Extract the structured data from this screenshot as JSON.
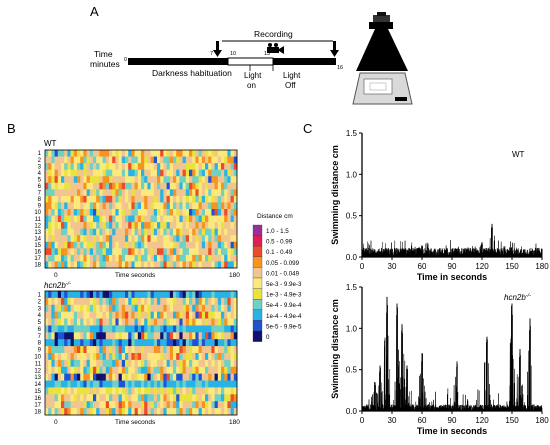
{
  "panels": {
    "a": "A",
    "b": "B",
    "c": "C"
  },
  "timeline": {
    "time_label_line1": "Time",
    "time_label_line2": "minutes",
    "ticks": [
      "0",
      "7",
      "10",
      "13",
      "16"
    ],
    "recording_label": "Recording",
    "darkness_label": "Darkness habituation",
    "light_on_line1": "Light",
    "light_on_line2": "on",
    "light_off_line1": "Light",
    "light_off_line2": "Off"
  },
  "heatmap": {
    "wt_label": "WT",
    "mut_label": "hcn2b",
    "mut_sup": "-/-",
    "rows": [
      "1",
      "2",
      "3",
      "4",
      "5",
      "6",
      "7",
      "8",
      "9",
      "10",
      "11",
      "12",
      "13",
      "14",
      "15",
      "16",
      "17",
      "18"
    ],
    "x_start": "0",
    "x_end": "180",
    "x_label": "Time seconds",
    "legend_title": "Distance cm",
    "legend": [
      {
        "label": "1.0 - 1.5",
        "color": "#9c2e9a"
      },
      {
        "label": "0.5 - 0.99",
        "color": "#e11d54"
      },
      {
        "label": "0.1 - 0.49",
        "color": "#ef4a2a"
      },
      {
        "label": "0.05 - 0.099",
        "color": "#f7931e"
      },
      {
        "label": "0.01 - 0.049",
        "color": "#f2c48f"
      },
      {
        "label": "5e-3 - 9.9e-3",
        "color": "#fbe97c"
      },
      {
        "label": "1e-3 - 4.9e-3",
        "color": "#e9e33d"
      },
      {
        "label": "5e-4 - 9.9e-4",
        "color": "#6fd0c6"
      },
      {
        "label": "1e-4 - 4.9e-4",
        "color": "#27b3e6"
      },
      {
        "label": "5e-5 - 9.9e-5",
        "color": "#1f53d6"
      },
      {
        "label": "0",
        "color": "#10106e"
      }
    ]
  },
  "chart_data": [
    {
      "type": "line",
      "annotation": "WT",
      "xlabel": "Time in seconds",
      "ylabel": "Swimming distance cm",
      "xlim": [
        0,
        180
      ],
      "ylim": [
        0,
        1.5
      ],
      "xticks": [
        0,
        30,
        60,
        90,
        120,
        150,
        180
      ],
      "yticks": [
        0.0,
        0.5,
        1.0,
        1.5
      ],
      "x": [
        0,
        30,
        60,
        90,
        120,
        130,
        150,
        180
      ],
      "y": [
        0.06,
        0.1,
        0.14,
        0.1,
        0.18,
        0.4,
        0.12,
        0.1
      ]
    },
    {
      "type": "line",
      "annotation": "hcn2b",
      "annotation_sup": "-/-",
      "xlabel": "Time in seconds",
      "ylabel": "Swimming distance cm",
      "xlim": [
        0,
        180
      ],
      "ylim": [
        0,
        1.5
      ],
      "xticks": [
        0,
        30,
        60,
        90,
        120,
        150,
        180
      ],
      "yticks": [
        0.0,
        0.5,
        1.0,
        1.5
      ],
      "x": [
        13,
        18,
        25,
        35,
        40,
        45,
        60,
        95,
        125,
        150,
        158,
        168
      ],
      "y": [
        0.35,
        0.55,
        1.38,
        1.3,
        1.05,
        0.55,
        0.7,
        0.6,
        0.9,
        1.3,
        0.75,
        1.12
      ]
    }
  ]
}
